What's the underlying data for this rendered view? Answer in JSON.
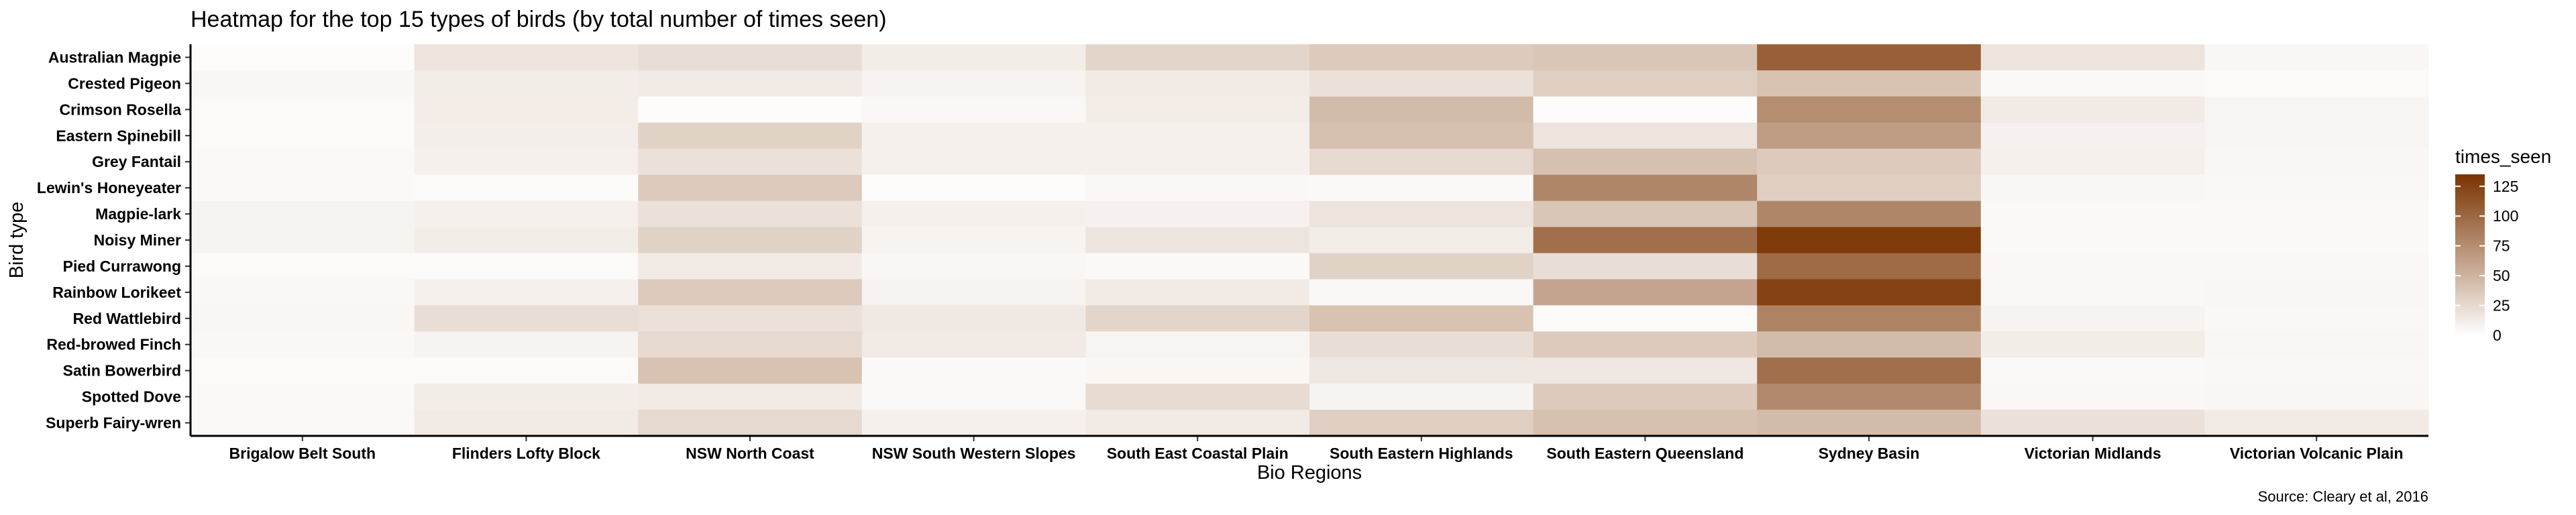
{
  "chart_data": {
    "type": "heatmap",
    "title": "Heatmap for the top 15 types of birds (by total number of times seen)",
    "xlabel": "Bio Regions",
    "ylabel": "Bird type",
    "caption": "Source: Cleary et al, 2016",
    "legend": {
      "title": "times_seen",
      "placement": "right",
      "ticks": [
        0,
        25,
        50,
        75,
        100,
        125
      ],
      "range": [
        0,
        135
      ]
    },
    "colors": {
      "low": "#ffffff",
      "high": "#7a3300"
    },
    "x_categories": [
      "Brigalow Belt South",
      "Flinders Lofty Block",
      "NSW North Coast",
      "NSW South Western Slopes",
      "South East Coastal Plain",
      "South Eastern Highlands",
      "South Eastern Queensland",
      "Sydney Basin",
      "Victorian Midlands",
      "Victorian Volcanic Plain"
    ],
    "y_categories": [
      "Australian Magpie",
      "Crested Pigeon",
      "Crimson Rosella",
      "Eastern Spinebill",
      "Grey Fantail",
      "Lewin's Honeyeater",
      "Magpie-lark",
      "Noisy Miner",
      "Pied Currawong",
      "Rainbow Lorikeet",
      "Red Wattlebird",
      "Red-browed Finch",
      "Satin Bowerbird",
      "Spotted Dove",
      "Superb Fairy-wren"
    ],
    "values": [
      [
        2,
        18,
        22,
        12,
        28,
        35,
        38,
        105,
        18,
        6
      ],
      [
        6,
        12,
        14,
        8,
        14,
        20,
        32,
        40,
        4,
        3
      ],
      [
        3,
        12,
        2,
        5,
        12,
        45,
        2,
        75,
        14,
        7
      ],
      [
        3,
        11,
        30,
        10,
        10,
        42,
        18,
        65,
        9,
        7
      ],
      [
        4,
        10,
        20,
        10,
        10,
        25,
        42,
        35,
        10,
        6
      ],
      [
        4,
        3,
        35,
        2,
        5,
        4,
        80,
        32,
        6,
        5
      ],
      [
        8,
        10,
        20,
        10,
        9,
        18,
        38,
        80,
        4,
        4
      ],
      [
        8,
        12,
        30,
        8,
        18,
        12,
        95,
        130,
        4,
        4
      ],
      [
        3,
        3,
        14,
        6,
        4,
        30,
        22,
        98,
        5,
        5
      ],
      [
        5,
        10,
        35,
        8,
        14,
        5,
        60,
        125,
        5,
        6
      ],
      [
        6,
        22,
        20,
        15,
        28,
        40,
        3,
        82,
        8,
        5
      ],
      [
        5,
        8,
        25,
        14,
        7,
        22,
        35,
        45,
        12,
        6
      ],
      [
        3,
        3,
        40,
        4,
        6,
        16,
        16,
        95,
        4,
        5
      ],
      [
        4,
        12,
        14,
        4,
        24,
        8,
        35,
        78,
        5,
        6
      ],
      [
        4,
        14,
        25,
        10,
        14,
        32,
        42,
        45,
        20,
        14
      ]
    ]
  }
}
